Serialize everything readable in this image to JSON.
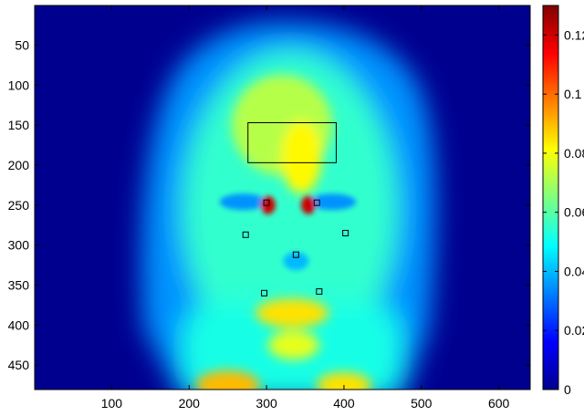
{
  "chart_data": {
    "type": "heatmap",
    "title": "",
    "xlabel": "",
    "ylabel": "",
    "colormap": "jet",
    "xlim": [
      1,
      640
    ],
    "ylim": [
      480,
      1
    ],
    "x_ticks": [
      100,
      200,
      300,
      400,
      500,
      600
    ],
    "y_ticks": [
      50,
      100,
      150,
      200,
      250,
      300,
      350,
      400,
      450
    ],
    "colorbar": {
      "range": [
        0,
        0.13
      ],
      "ticks": [
        0,
        0.02,
        0.04,
        0.06,
        0.08,
        0.1,
        0.12
      ],
      "tick_labels": [
        "0",
        "0.02",
        "0.04",
        "0.06",
        "0.08",
        "0.1",
        "0.12"
      ]
    },
    "regions": [
      {
        "shape": "rect",
        "x": [
          276,
          390
        ],
        "y": [
          147,
          197
        ]
      },
      {
        "shape": "square",
        "x": 300,
        "y": 247
      },
      {
        "shape": "square",
        "x": 365,
        "y": 247
      },
      {
        "shape": "square",
        "x": 273,
        "y": 287
      },
      {
        "shape": "square",
        "x": 402,
        "y": 285
      },
      {
        "shape": "square",
        "x": 338,
        "y": 312
      },
      {
        "shape": "square",
        "x": 297,
        "y": 360
      },
      {
        "shape": "square",
        "x": 368,
        "y": 358
      }
    ],
    "intensity_field": [
      {
        "feature": "background",
        "value": 0.004
      },
      {
        "feature": "hair",
        "x": 330,
        "y": 150,
        "value": 0.035
      },
      {
        "feature": "face",
        "x": 330,
        "y": 270,
        "value": 0.055
      },
      {
        "feature": "neck",
        "x": 335,
        "y": 450,
        "value": 0.052
      },
      {
        "feature": "forehead-center",
        "x": 320,
        "y": 150,
        "value": 0.072
      },
      {
        "feature": "forehead-band",
        "x": 345,
        "y": 190,
        "value": 0.082
      },
      {
        "feature": "inner-eye-left",
        "x": 302,
        "y": 250,
        "value": 0.12
      },
      {
        "feature": "inner-eye-right",
        "x": 354,
        "y": 250,
        "value": 0.12
      },
      {
        "feature": "eye-socket-left",
        "x": 270,
        "y": 246,
        "value": 0.035
      },
      {
        "feature": "eye-socket-right",
        "x": 385,
        "y": 246,
        "value": 0.035
      },
      {
        "feature": "nose-tip",
        "x": 338,
        "y": 320,
        "value": 0.04
      },
      {
        "feature": "mouth",
        "x": 333,
        "y": 385,
        "value": 0.085
      },
      {
        "feature": "chin",
        "x": 335,
        "y": 425,
        "value": 0.078
      },
      {
        "feature": "neck-left",
        "x": 250,
        "y": 475,
        "value": 0.09
      },
      {
        "feature": "neck-right",
        "x": 400,
        "y": 475,
        "value": 0.085
      }
    ]
  }
}
